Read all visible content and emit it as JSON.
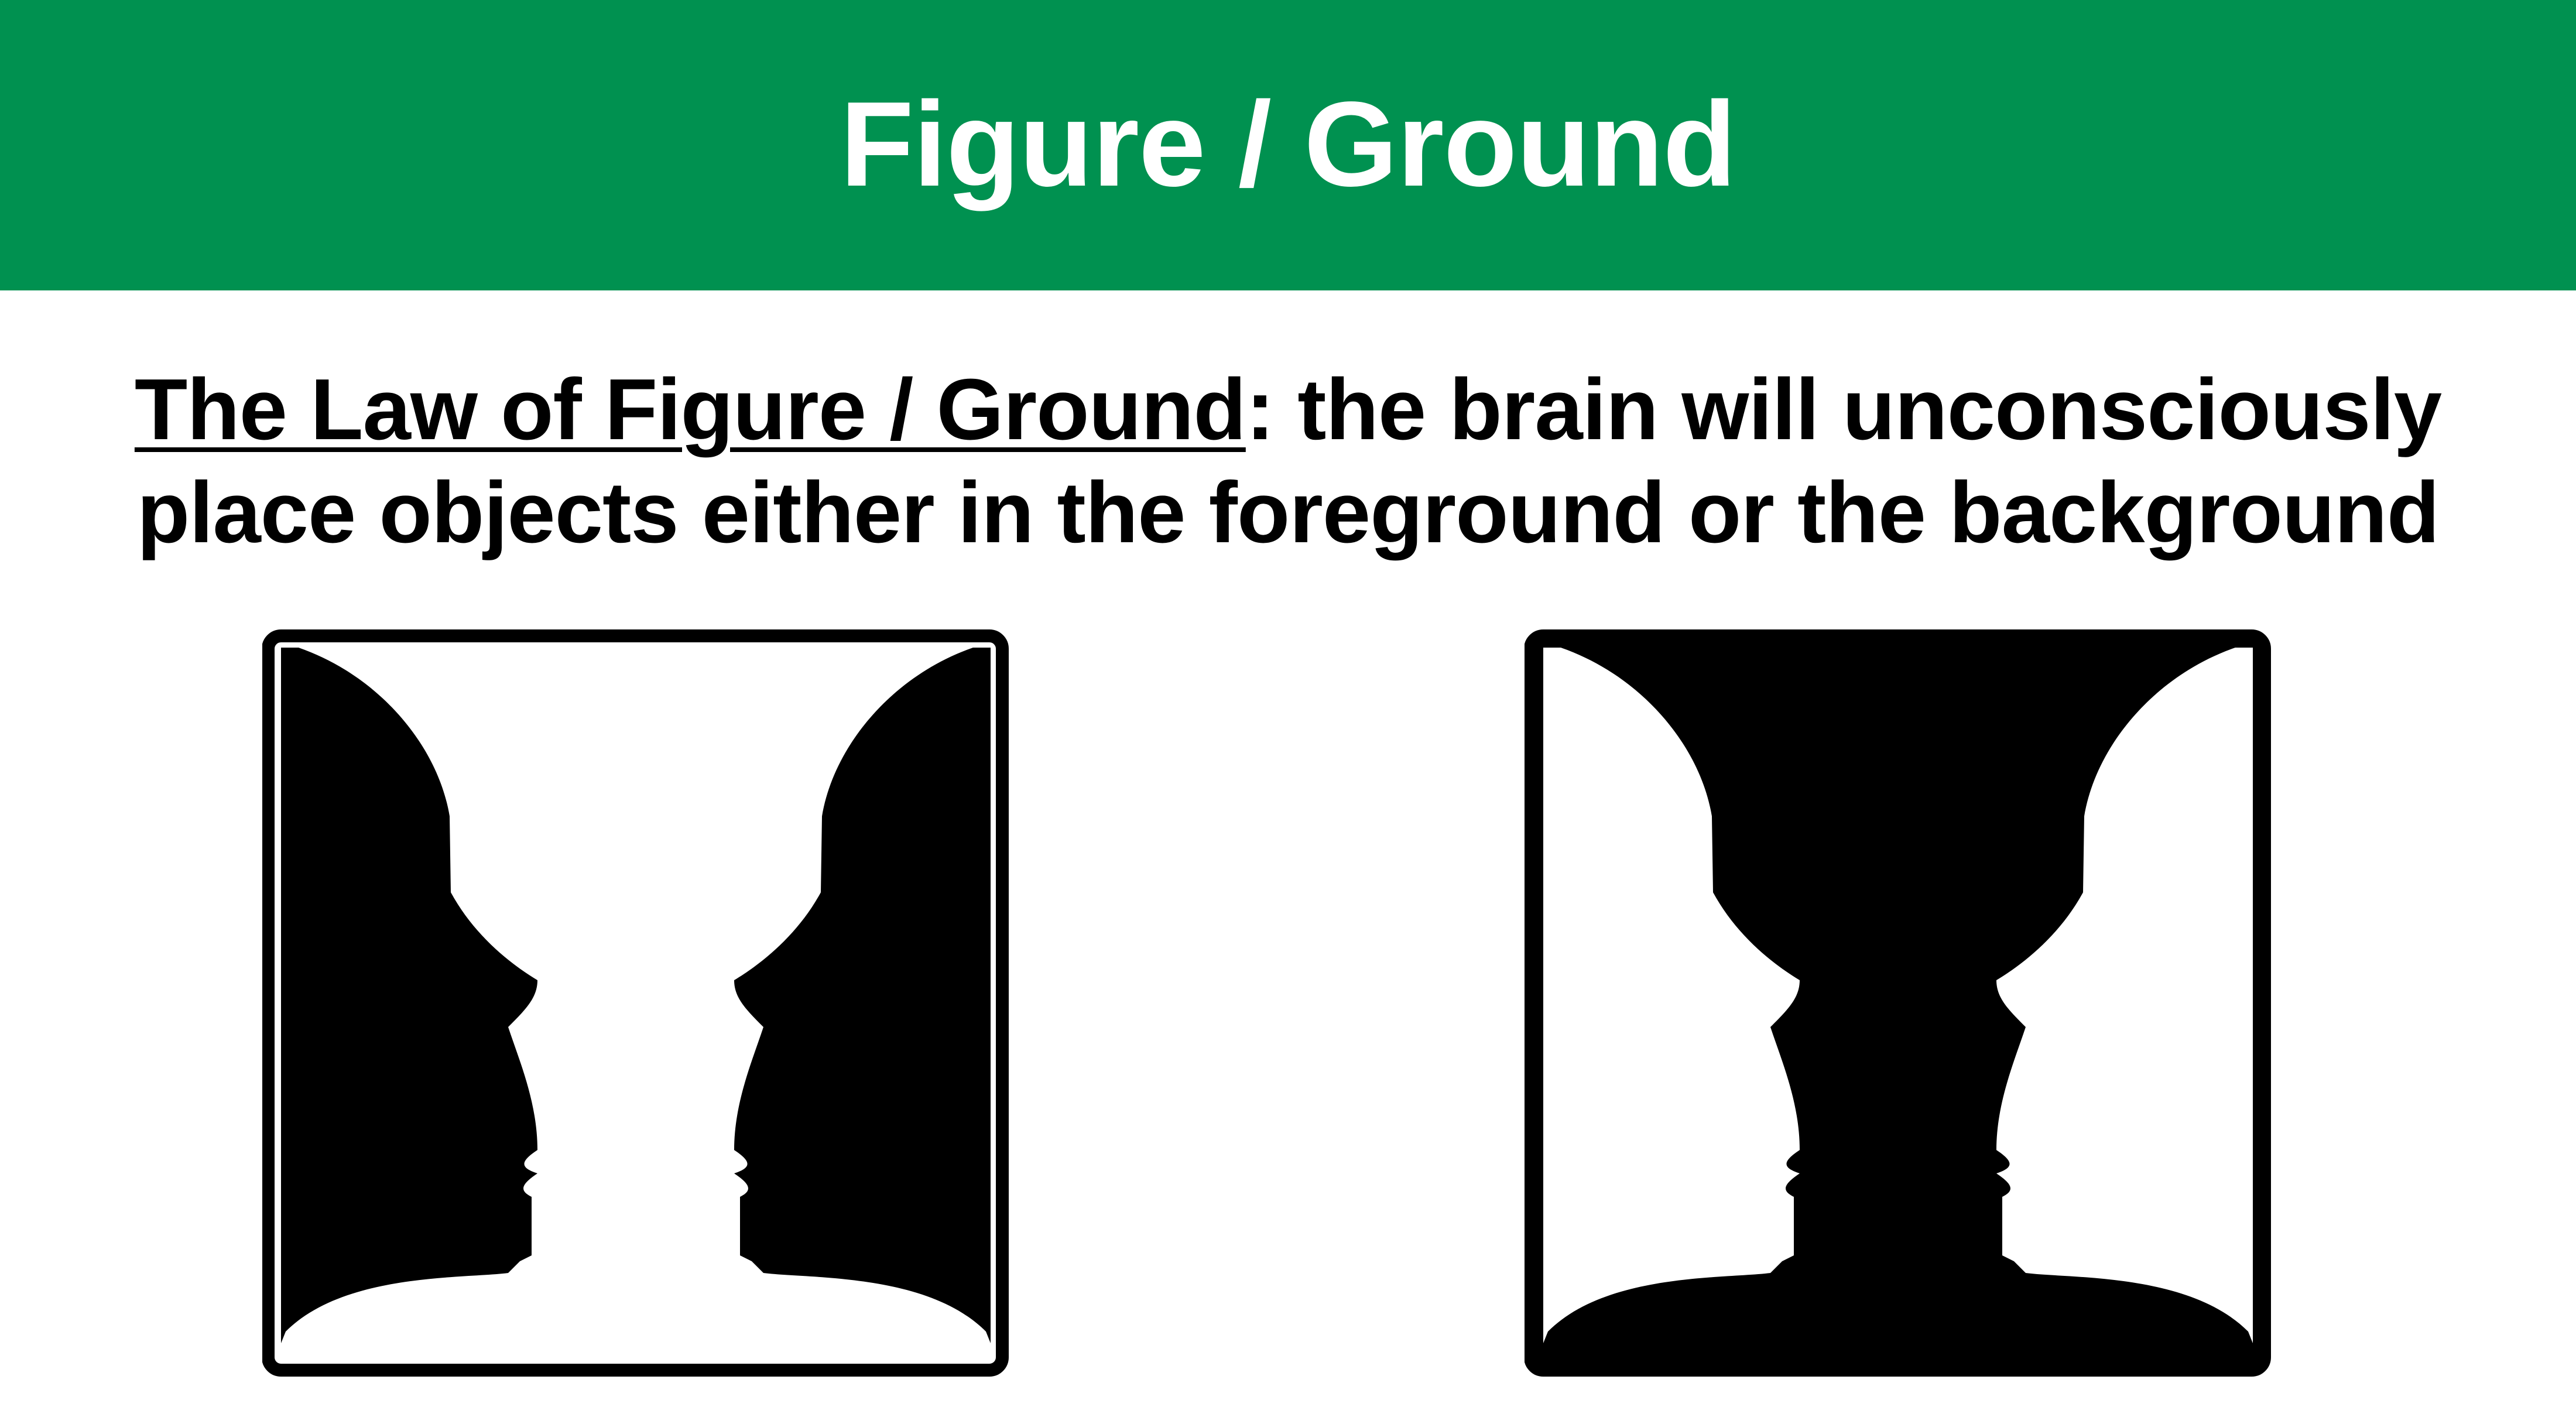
{
  "slide": {
    "title": "Figure / Ground",
    "definition_term": "The Law of Figure / Ground",
    "definition_rest": ": the brain will unconsciously place objects either in the foreground or the background"
  },
  "illusions": [
    {
      "variant": "black-faces-white-vase",
      "face_color": "#000000",
      "vase_color": "#ffffff"
    },
    {
      "variant": "white-faces-black-vase",
      "face_color": "#ffffff",
      "vase_color": "#000000"
    }
  ],
  "colors": {
    "title_bar": "#009150",
    "title_text": "#ffffff",
    "body_text": "#000000",
    "background": "#ffffff"
  }
}
